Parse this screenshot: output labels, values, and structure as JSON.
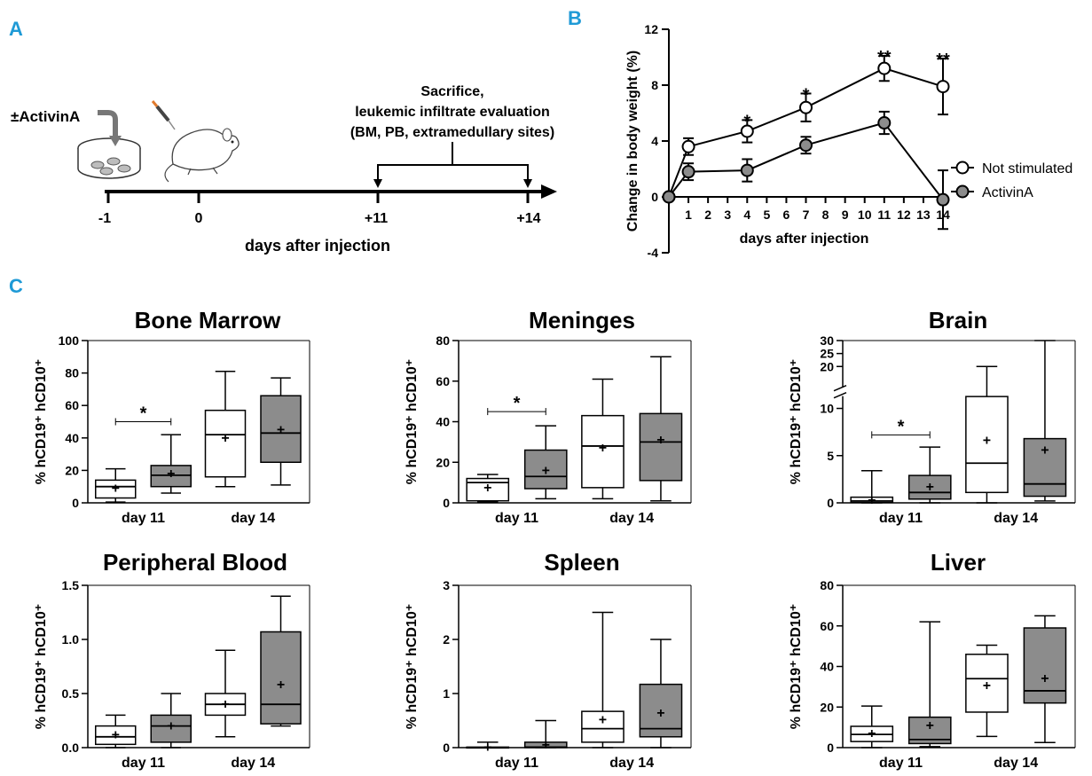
{
  "panel_labels": [
    "A",
    "B",
    "C"
  ],
  "schematic": {
    "treatment_label": "±ActivinA",
    "top_label_lines": [
      "Sacrifice,",
      "leukemic infiltrate evaluation",
      "(BM, PB, extramedullary sites)"
    ],
    "timeline_ticks": [
      "-1",
      "0",
      "+11",
      "+14"
    ],
    "axis_label": "days after injection"
  },
  "chart_data": [
    {
      "id": "weight",
      "type": "line",
      "ylabel": "Change in body weight (%)",
      "xlabel": "days after injection",
      "xlim": [
        0,
        14
      ],
      "ylim": [
        -4,
        12
      ],
      "x_ticks": [
        "1",
        "2",
        "3",
        "4",
        "5",
        "6",
        "7",
        "8",
        "9",
        "10",
        "11",
        "12",
        "13",
        "14"
      ],
      "y_ticks": [
        "-4",
        "0",
        "4",
        "8",
        "12"
      ],
      "legend_position": "right",
      "series": [
        {
          "name": "Not stimulated",
          "fill": "#ffffff",
          "x": [
            0,
            1,
            4,
            7,
            11,
            14
          ],
          "y": [
            0,
            3.6,
            4.7,
            6.4,
            9.2,
            7.9
          ],
          "err": [
            0,
            0.6,
            0.8,
            1.0,
            0.9,
            2.0
          ]
        },
        {
          "name": "ActivinA",
          "fill": "#8c8c8c",
          "x": [
            0,
            1,
            4,
            7,
            11,
            14
          ],
          "y": [
            0,
            1.8,
            1.9,
            3.7,
            5.3,
            -0.2
          ],
          "err": [
            0,
            0.6,
            0.8,
            0.6,
            0.8,
            2.1
          ]
        }
      ],
      "annotations": [
        {
          "x": 4,
          "y": 5.5,
          "text": "*"
        },
        {
          "x": 7,
          "y": 7.4,
          "text": "*"
        },
        {
          "x": 11,
          "y": 10.1,
          "text": "**"
        },
        {
          "x": 14,
          "y": 9.9,
          "text": "**"
        }
      ]
    },
    {
      "id": "bm",
      "type": "box",
      "title": "Bone Marrow",
      "ylabel": "% hCD19⁺ hCD10⁺",
      "ylim": [
        0,
        100
      ],
      "y_ticks": [
        0,
        20,
        40,
        60,
        80,
        100
      ],
      "y_tick_labels": [
        "0",
        "20",
        "40",
        "60",
        "80",
        "100"
      ],
      "categories": [
        "day 11",
        "day 14"
      ],
      "boxes": [
        {
          "group": 0,
          "fill": "#ffffff",
          "min": 0.5,
          "q1": 3,
          "median": 10,
          "q3": 14,
          "max": 21,
          "mean": 9
        },
        {
          "group": 0,
          "fill": "#8c8c8c",
          "min": 6,
          "q1": 10,
          "median": 17,
          "q3": 23,
          "max": 42,
          "mean": 18
        },
        {
          "group": 1,
          "fill": "#ffffff",
          "min": 10,
          "q1": 16,
          "median": 42,
          "q3": 57,
          "max": 81,
          "mean": 40
        },
        {
          "group": 1,
          "fill": "#8c8c8c",
          "min": 11,
          "q1": 25,
          "median": 43,
          "q3": 66,
          "max": 77,
          "mean": 45
        }
      ],
      "significance": {
        "from": 0,
        "to": 1,
        "y": 50,
        "text": "*"
      }
    },
    {
      "id": "men",
      "type": "box",
      "title": "Meninges",
      "ylabel": "% hCD19⁺ hCD10⁺",
      "ylim": [
        0,
        80
      ],
      "y_ticks": [
        0,
        20,
        40,
        60,
        80
      ],
      "y_tick_labels": [
        "0",
        "20",
        "40",
        "60",
        "80"
      ],
      "categories": [
        "day 11",
        "day 14"
      ],
      "boxes": [
        {
          "group": 0,
          "fill": "#ffffff",
          "min": 0.5,
          "q1": 1,
          "median": 10,
          "q3": 12,
          "max": 14,
          "mean": 7.5
        },
        {
          "group": 0,
          "fill": "#8c8c8c",
          "min": 2,
          "q1": 7,
          "median": 13,
          "q3": 26,
          "max": 38,
          "mean": 16
        },
        {
          "group": 1,
          "fill": "#ffffff",
          "min": 2,
          "q1": 7.5,
          "median": 28,
          "q3": 43,
          "max": 61,
          "mean": 27
        },
        {
          "group": 1,
          "fill": "#8c8c8c",
          "min": 1,
          "q1": 11,
          "median": 30,
          "q3": 44,
          "max": 72,
          "mean": 31
        }
      ],
      "significance": {
        "from": 0,
        "to": 1,
        "y": 45,
        "text": "*"
      }
    },
    {
      "id": "brain",
      "type": "box",
      "title": "Brain",
      "ylabel": "% hCD19⁺ hCD10⁺",
      "broken_axis": true,
      "ylim": [
        0,
        30
      ],
      "y_ticks": [
        0,
        5,
        10,
        20,
        25,
        30
      ],
      "y_tick_labels": [
        "0",
        "5",
        "10",
        "20",
        "25",
        "30"
      ],
      "categories": [
        "day 11",
        "day 14"
      ],
      "boxes": [
        {
          "group": 0,
          "fill": "#ffffff",
          "min": 0,
          "q1": 0.05,
          "median": 0.2,
          "q3": 0.6,
          "max": 3.4,
          "mean": 0.3
        },
        {
          "group": 0,
          "fill": "#8c8c8c",
          "min": 0,
          "q1": 0.4,
          "median": 1.1,
          "q3": 2.9,
          "max": 5.9,
          "mean": 1.7
        },
        {
          "group": 1,
          "fill": "#ffffff",
          "min": 0,
          "q1": 1.1,
          "median": 4.2,
          "q3": 11.5,
          "max": 20,
          "mean": 6.6
        },
        {
          "group": 1,
          "fill": "#8c8c8c",
          "min": 0.2,
          "q1": 0.7,
          "median": 2.0,
          "q3": 6.8,
          "max": 30,
          "mean": 5.6
        }
      ],
      "significance": {
        "from": 0,
        "to": 1,
        "y": 7.2,
        "text": "*"
      }
    },
    {
      "id": "pb",
      "type": "box",
      "title": "Peripheral Blood",
      "ylabel": "% hCD19⁺ hCD10⁺",
      "ylim": [
        0,
        1.5
      ],
      "y_ticks": [
        0,
        0.5,
        1.0,
        1.5
      ],
      "y_tick_labels": [
        "0.0",
        "0.5",
        "1.0",
        "1.5"
      ],
      "categories": [
        "day 11",
        "day 14"
      ],
      "boxes": [
        {
          "group": 0,
          "fill": "#ffffff",
          "min": 0,
          "q1": 0.03,
          "median": 0.1,
          "q3": 0.2,
          "max": 0.3,
          "mean": 0.12
        },
        {
          "group": 0,
          "fill": "#8c8c8c",
          "min": 0,
          "q1": 0.05,
          "median": 0.2,
          "q3": 0.3,
          "max": 0.5,
          "mean": 0.2
        },
        {
          "group": 1,
          "fill": "#ffffff",
          "min": 0.1,
          "q1": 0.3,
          "median": 0.4,
          "q3": 0.5,
          "max": 0.9,
          "mean": 0.4
        },
        {
          "group": 1,
          "fill": "#8c8c8c",
          "min": 0.2,
          "q1": 0.22,
          "median": 0.4,
          "q3": 1.07,
          "max": 1.4,
          "mean": 0.58
        }
      ]
    },
    {
      "id": "spl",
      "type": "box",
      "title": "Spleen",
      "ylabel": "% hCD19⁺ hCD10⁺",
      "ylim": [
        0,
        3
      ],
      "y_ticks": [
        0,
        1,
        2,
        3
      ],
      "y_tick_labels": [
        "0",
        "1",
        "2",
        "3"
      ],
      "categories": [
        "day 11",
        "day 14"
      ],
      "boxes": [
        {
          "group": 0,
          "fill": "#ffffff",
          "min": 0,
          "q1": 0,
          "median": 0,
          "q3": 0.01,
          "max": 0.1,
          "mean": 0.01
        },
        {
          "group": 0,
          "fill": "#8c8c8c",
          "min": 0,
          "q1": 0,
          "median": 0.01,
          "q3": 0.1,
          "max": 0.5,
          "mean": 0.05
        },
        {
          "group": 1,
          "fill": "#ffffff",
          "min": 0,
          "q1": 0.1,
          "median": 0.35,
          "q3": 0.67,
          "max": 2.5,
          "mean": 0.52
        },
        {
          "group": 1,
          "fill": "#8c8c8c",
          "min": 0,
          "q1": 0.2,
          "median": 0.35,
          "q3": 1.17,
          "max": 2.0,
          "mean": 0.64
        }
      ]
    },
    {
      "id": "liv",
      "type": "box",
      "title": "Liver",
      "ylabel": "% hCD19⁺ hCD10⁺",
      "ylim": [
        0,
        80
      ],
      "y_ticks": [
        0,
        20,
        40,
        60,
        80
      ],
      "y_tick_labels": [
        "0",
        "20",
        "40",
        "60",
        "80"
      ],
      "categories": [
        "day 11",
        "day 14"
      ],
      "boxes": [
        {
          "group": 0,
          "fill": "#ffffff",
          "min": 0,
          "q1": 3,
          "median": 6.5,
          "q3": 10.5,
          "max": 20.5,
          "mean": 7
        },
        {
          "group": 0,
          "fill": "#8c8c8c",
          "min": 0.5,
          "q1": 2,
          "median": 4,
          "q3": 15,
          "max": 62,
          "mean": 11
        },
        {
          "group": 1,
          "fill": "#ffffff",
          "min": 5.5,
          "q1": 17.5,
          "median": 34,
          "q3": 46,
          "max": 50.5,
          "mean": 30.5
        },
        {
          "group": 1,
          "fill": "#8c8c8c",
          "min": 2.5,
          "q1": 22,
          "median": 28,
          "q3": 59,
          "max": 65,
          "mean": 34
        }
      ]
    }
  ]
}
